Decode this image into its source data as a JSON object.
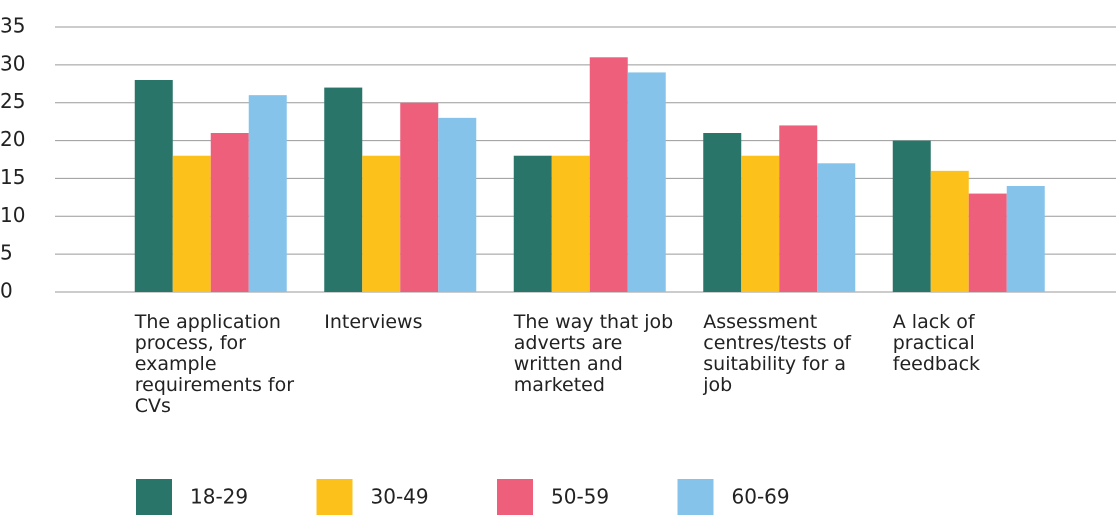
{
  "chart_data": {
    "type": "bar",
    "categories": [
      "The application process, for example requirements for CVs",
      "Interviews",
      "The way that job adverts are written and marketed",
      "Assessment centres/tests of suitability for a job",
      "A lack of practical feedback"
    ],
    "series": [
      {
        "name": "18-29",
        "color": "#2a7569",
        "values": [
          28,
          27,
          18,
          21,
          20
        ]
      },
      {
        "name": "30-49",
        "color": "#fdc11c",
        "values": [
          18,
          18,
          18,
          18,
          16
        ]
      },
      {
        "name": "50-59",
        "color": "#ee5f7c",
        "values": [
          21,
          25,
          31,
          22,
          13
        ]
      },
      {
        "name": "60-69",
        "color": "#86c3ea",
        "values": [
          26,
          23,
          29,
          17,
          14
        ]
      }
    ],
    "ylim": [
      0,
      35
    ],
    "yticks": [
      0,
      5,
      10,
      15,
      20,
      25,
      30,
      35
    ],
    "grid": true,
    "legend": "bottom"
  }
}
